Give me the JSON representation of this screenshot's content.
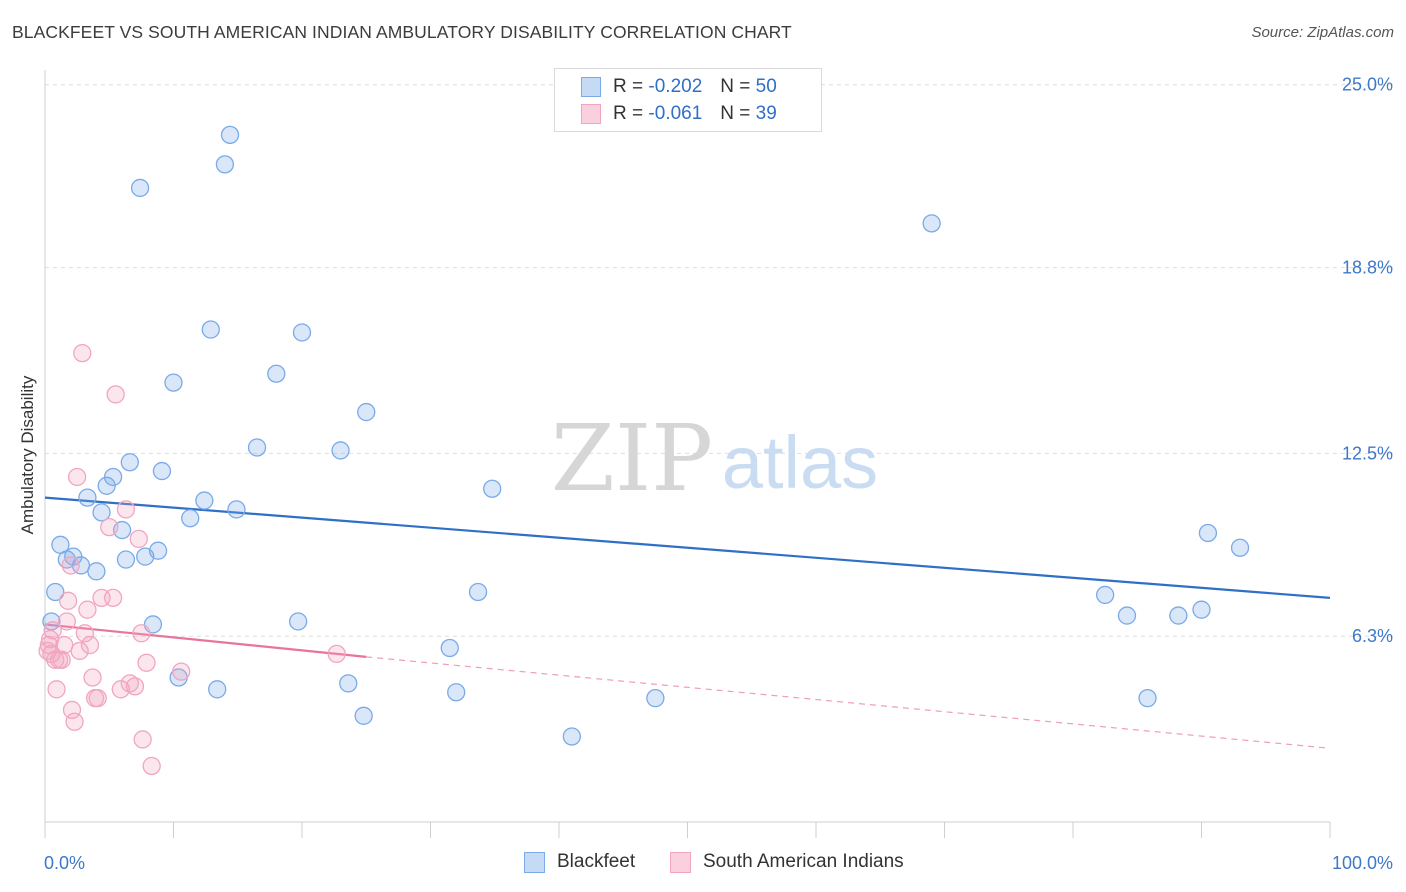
{
  "title": "BLACKFEET VS SOUTH AMERICAN INDIAN AMBULATORY DISABILITY CORRELATION CHART",
  "source": "Source: ZipAtlas.com",
  "watermark": {
    "zip": "ZIP",
    "atlas": "atlas"
  },
  "legend": {
    "rows": [
      {
        "r_label": "R =",
        "r_value": "-0.202",
        "n_label": "N =",
        "n_value": "50"
      },
      {
        "r_label": "R =",
        "r_value": "-0.061",
        "n_label": "N =",
        "n_value": "39"
      }
    ]
  },
  "chart_data": {
    "type": "scatter",
    "title": "BLACKFEET VS SOUTH AMERICAN INDIAN AMBULATORY DISABILITY CORRELATION CHART",
    "xlabel": "",
    "ylabel": "Ambulatory Disability",
    "xlim": [
      0,
      100
    ],
    "ylim": [
      0,
      25.5
    ],
    "x_tick_labels": [
      "0.0%",
      "100.0%"
    ],
    "y_ticks": [
      6.3,
      12.5,
      18.8,
      25.0
    ],
    "y_tick_labels": [
      "6.3%",
      "12.5%",
      "18.8%",
      "25.0%"
    ],
    "grid": true,
    "legend_position": "top-center",
    "series": [
      {
        "name": "Blackfeet",
        "color": "#7aaae8",
        "trend_color": "#2f6fc6",
        "trend": {
          "x0": 0,
          "y0": 11.0,
          "x1": 100,
          "y1": 7.6
        },
        "points": [
          [
            0.5,
            6.8
          ],
          [
            0.8,
            7.8
          ],
          [
            1.2,
            9.4
          ],
          [
            1.7,
            8.9
          ],
          [
            2.2,
            9.0
          ],
          [
            2.8,
            8.7
          ],
          [
            3.3,
            11.0
          ],
          [
            4.0,
            8.5
          ],
          [
            4.4,
            10.5
          ],
          [
            4.8,
            11.4
          ],
          [
            5.3,
            11.7
          ],
          [
            6.0,
            9.9
          ],
          [
            6.3,
            8.9
          ],
          [
            6.6,
            12.2
          ],
          [
            7.4,
            21.5
          ],
          [
            7.8,
            9.0
          ],
          [
            8.4,
            6.7
          ],
          [
            8.8,
            9.2
          ],
          [
            9.1,
            11.9
          ],
          [
            10.0,
            14.9
          ],
          [
            10.4,
            4.9
          ],
          [
            11.3,
            10.3
          ],
          [
            12.4,
            10.9
          ],
          [
            12.9,
            16.7
          ],
          [
            13.4,
            4.5
          ],
          [
            14.0,
            22.3
          ],
          [
            14.4,
            23.3
          ],
          [
            14.9,
            10.6
          ],
          [
            16.5,
            12.7
          ],
          [
            18.0,
            15.2
          ],
          [
            19.7,
            6.8
          ],
          [
            20.0,
            16.6
          ],
          [
            23.0,
            12.6
          ],
          [
            23.6,
            4.7
          ],
          [
            24.8,
            3.6
          ],
          [
            25.0,
            13.9
          ],
          [
            31.5,
            5.9
          ],
          [
            32.0,
            4.4
          ],
          [
            33.7,
            7.8
          ],
          [
            34.8,
            11.3
          ],
          [
            41.0,
            2.9
          ],
          [
            47.5,
            4.2
          ],
          [
            69.0,
            20.3
          ],
          [
            82.5,
            7.7
          ],
          [
            84.2,
            7.0
          ],
          [
            85.8,
            4.2
          ],
          [
            88.2,
            7.0
          ],
          [
            90.0,
            7.2
          ],
          [
            90.5,
            9.8
          ],
          [
            93.0,
            9.3
          ]
        ]
      },
      {
        "name": "South American Indians",
        "color": "#f2a5c0",
        "trend_color": "#e8739c",
        "trend": {
          "x0": 0,
          "y0": 6.7,
          "x1": 25,
          "y1": 5.6
        },
        "trend_extension": {
          "x0": 25,
          "y0": 5.6,
          "x1": 100,
          "y1": 2.5
        },
        "points": [
          [
            0.2,
            5.8
          ],
          [
            0.3,
            6.0
          ],
          [
            0.4,
            6.2
          ],
          [
            0.5,
            5.7
          ],
          [
            0.6,
            6.5
          ],
          [
            0.8,
            5.5
          ],
          [
            0.9,
            4.5
          ],
          [
            1.1,
            5.5
          ],
          [
            1.3,
            5.5
          ],
          [
            1.5,
            6.0
          ],
          [
            1.7,
            6.8
          ],
          [
            1.8,
            7.5
          ],
          [
            2.0,
            8.7
          ],
          [
            2.1,
            3.8
          ],
          [
            2.3,
            3.4
          ],
          [
            2.5,
            11.7
          ],
          [
            2.7,
            5.8
          ],
          [
            2.9,
            15.9
          ],
          [
            3.1,
            6.4
          ],
          [
            3.3,
            7.2
          ],
          [
            3.5,
            6.0
          ],
          [
            3.7,
            4.9
          ],
          [
            3.9,
            4.2
          ],
          [
            4.1,
            4.2
          ],
          [
            4.4,
            7.6
          ],
          [
            5.0,
            10.0
          ],
          [
            5.3,
            7.6
          ],
          [
            5.5,
            14.5
          ],
          [
            5.9,
            4.5
          ],
          [
            6.3,
            10.6
          ],
          [
            6.6,
            4.7
          ],
          [
            7.0,
            4.6
          ],
          [
            7.3,
            9.6
          ],
          [
            7.5,
            6.4
          ],
          [
            7.6,
            2.8
          ],
          [
            7.9,
            5.4
          ],
          [
            8.3,
            1.9
          ],
          [
            10.6,
            5.1
          ],
          [
            22.7,
            5.7
          ]
        ]
      }
    ]
  }
}
